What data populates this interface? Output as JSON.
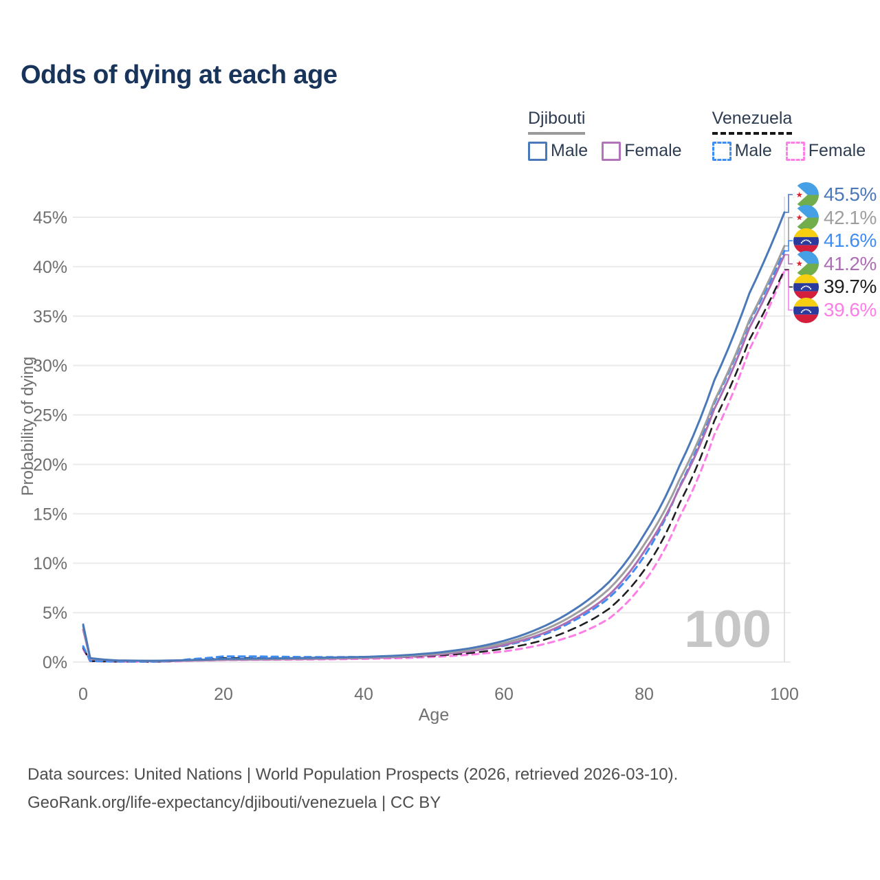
{
  "title": "Odds of dying at each age",
  "legend": {
    "groups": [
      {
        "label": "Djibouti",
        "style": "solid",
        "header_color": "#9a9a9a",
        "items": [
          {
            "label": "Male",
            "color": "#4a78b8"
          },
          {
            "label": "Female",
            "color": "#b273b8"
          }
        ]
      },
      {
        "label": "Venezuela",
        "style": "dashed",
        "header_color": "#161616",
        "items": [
          {
            "label": "Male",
            "color": "#3f8df2"
          },
          {
            "label": "Female",
            "color": "#fc7ee6"
          }
        ]
      }
    ]
  },
  "hover_age_label": "100",
  "footer": {
    "line1": "Data sources: United Nations | World Population Prospects (2026, retrieved 2026-03-10).",
    "line2": "GeoRank.org/life-expectancy/djibouti/venezuela | CC BY"
  },
  "chart_data": {
    "type": "line",
    "title": "Odds of dying at each age",
    "xlabel": "Age",
    "ylabel": "Probability of dying",
    "x": [
      0,
      1,
      5,
      10,
      15,
      20,
      25,
      30,
      35,
      40,
      45,
      50,
      55,
      60,
      65,
      70,
      75,
      80,
      85,
      90,
      95,
      100
    ],
    "xticks": [
      "0",
      "20",
      "40",
      "60",
      "80",
      "100"
    ],
    "yticks": [
      "0%",
      "5%",
      "10%",
      "15%",
      "20%",
      "25%",
      "30%",
      "35%",
      "40%",
      "45%"
    ],
    "ylim": [
      0,
      47
    ],
    "xlim": [
      0,
      100
    ],
    "grid": "horizontal",
    "legend_position": "top-right",
    "hover_age": 100,
    "series": [
      {
        "name": "Djibouti Male",
        "country": "Djibouti",
        "flag": "dj",
        "color": "#4a78b8",
        "dash": "solid",
        "end_label": "45.5%",
        "values": [
          3.8,
          0.4,
          0.16,
          0.13,
          0.2,
          0.32,
          0.36,
          0.4,
          0.45,
          0.52,
          0.66,
          0.92,
          1.38,
          2.15,
          3.4,
          5.3,
          8.1,
          12.9,
          19.8,
          28.5,
          37.3,
          45.5
        ]
      },
      {
        "name": "Djibouti Both sexes",
        "country": "Djibouti",
        "flag": "dj",
        "color": "#9e9e9e",
        "dash": "solid",
        "end_label": "42.1%",
        "values": [
          3.6,
          0.37,
          0.15,
          0.12,
          0.17,
          0.27,
          0.31,
          0.35,
          0.39,
          0.46,
          0.58,
          0.82,
          1.22,
          1.92,
          3.05,
          4.8,
          7.4,
          11.9,
          18.4,
          26.4,
          34.6,
          42.1
        ]
      },
      {
        "name": "Djibouti Female",
        "country": "Djibouti",
        "flag": "dj",
        "color": "#ad6fb3",
        "dash": "solid",
        "end_label": "41.2%",
        "values": [
          3.3,
          0.34,
          0.14,
          0.11,
          0.14,
          0.22,
          0.26,
          0.29,
          0.34,
          0.4,
          0.51,
          0.72,
          1.08,
          1.72,
          2.75,
          4.4,
          6.8,
          11.2,
          17.6,
          25.6,
          33.8,
          41.2
        ]
      },
      {
        "name": "Venezuela Male",
        "country": "Venezuela",
        "flag": "ve",
        "color": "#3f8df2",
        "dash": "dashed",
        "end_label": "41.6%",
        "values": [
          1.6,
          0.11,
          0.05,
          0.04,
          0.28,
          0.58,
          0.57,
          0.52,
          0.5,
          0.52,
          0.6,
          0.78,
          1.1,
          1.65,
          2.6,
          4.2,
          6.5,
          10.7,
          17.7,
          26.2,
          34.4,
          41.6
        ]
      },
      {
        "name": "Venezuela Both sexes",
        "country": "Venezuela",
        "flag": "ve",
        "color": "#1f1f1f",
        "dash": "dashed",
        "end_label": "39.7%",
        "values": [
          1.45,
          0.1,
          0.05,
          0.04,
          0.2,
          0.4,
          0.41,
          0.39,
          0.39,
          0.41,
          0.49,
          0.64,
          0.9,
          1.35,
          2.1,
          3.4,
          5.4,
          9.3,
          16.0,
          24.4,
          32.6,
          39.7
        ]
      },
      {
        "name": "Venezuela Female",
        "country": "Venezuela",
        "flag": "ve",
        "color": "#fc7ee6",
        "dash": "dashed",
        "end_label": "39.6%",
        "values": [
          1.3,
          0.09,
          0.04,
          0.03,
          0.12,
          0.2,
          0.23,
          0.25,
          0.28,
          0.32,
          0.39,
          0.52,
          0.74,
          1.08,
          1.7,
          2.7,
          4.4,
          8.1,
          14.6,
          23.0,
          31.6,
          39.6
        ]
      }
    ]
  }
}
